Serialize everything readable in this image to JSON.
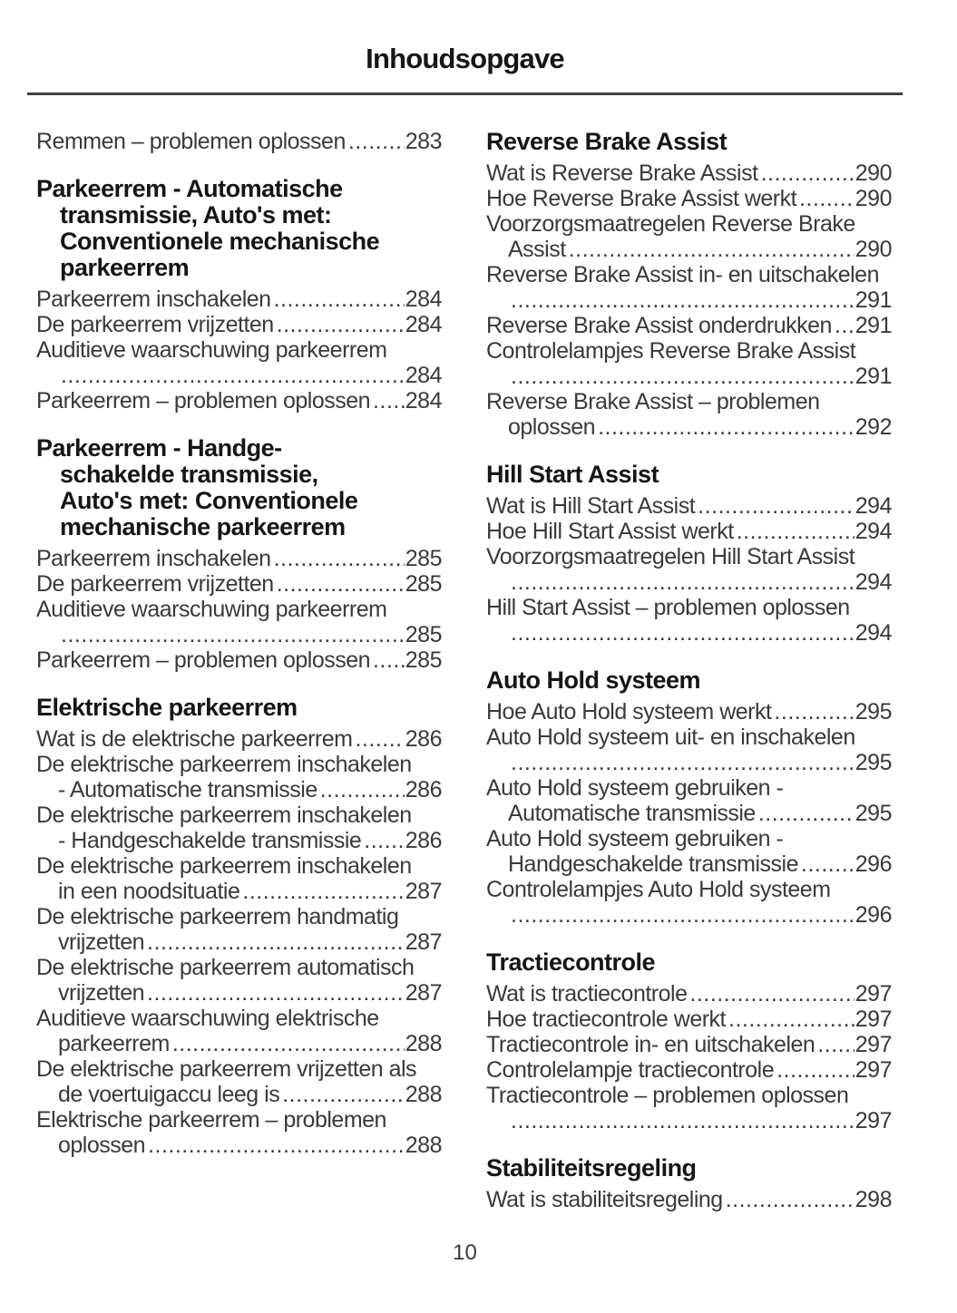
{
  "page": {
    "title": "Inhoudsopgave",
    "footer_page_number": "10"
  },
  "colors": {
    "background": "#ffffff",
    "heading_text": "#161616",
    "body_text": "#3a3a3a",
    "rule": "#414141"
  },
  "toc": {
    "leader_char": ".",
    "left_column": [
      {
        "heading_lines": [],
        "entries": [
          {
            "lines": [
              "Remmen – problemen oplossen"
            ],
            "page": "283"
          }
        ]
      },
      {
        "heading_lines": [
          "Parkeerrem - Automatische",
          "transmissie, Auto's met:",
          "Conventionele mechanische",
          "parkeerrem"
        ],
        "entries": [
          {
            "lines": [
              "Parkeerrem inschakelen"
            ],
            "page": "284"
          },
          {
            "lines": [
              "De parkeerrem vrijzetten"
            ],
            "page": "284"
          },
          {
            "lines": [
              "Auditieve waarschuwing parkeerrem",
              ""
            ],
            "page": "284"
          },
          {
            "lines": [
              "Parkeerrem – problemen oplossen"
            ],
            "page": "284"
          }
        ]
      },
      {
        "heading_lines": [
          "Parkeerrem - Handge-",
          "schakelde transmissie,",
          "Auto's met: Conventionele",
          "mechanische parkeerrem"
        ],
        "entries": [
          {
            "lines": [
              "Parkeerrem inschakelen"
            ],
            "page": "285"
          },
          {
            "lines": [
              "De parkeerrem vrijzetten"
            ],
            "page": "285"
          },
          {
            "lines": [
              "Auditieve waarschuwing parkeerrem",
              ""
            ],
            "page": "285"
          },
          {
            "lines": [
              "Parkeerrem – problemen oplossen"
            ],
            "page": "285"
          }
        ]
      },
      {
        "heading_lines": [
          "Elektrische parkeerrem"
        ],
        "entries": [
          {
            "lines": [
              "Wat is de elektrische parkeerrem"
            ],
            "page": "286"
          },
          {
            "lines": [
              "De elektrische parkeerrem inschakelen",
              "- Automatische transmissie"
            ],
            "page": "286"
          },
          {
            "lines": [
              "De elektrische parkeerrem inschakelen",
              "- Handgeschakelde transmissie"
            ],
            "page": "286"
          },
          {
            "lines": [
              "De elektrische parkeerrem inschakelen",
              "in een noodsituatie"
            ],
            "page": "287"
          },
          {
            "lines": [
              "De elektrische parkeerrem handmatig",
              "vrijzetten"
            ],
            "page": "287"
          },
          {
            "lines": [
              "De elektrische parkeerrem automatisch",
              "vrijzetten"
            ],
            "page": "287"
          },
          {
            "lines": [
              "Auditieve waarschuwing elektrische",
              "parkeerrem"
            ],
            "page": "288"
          },
          {
            "lines": [
              "De elektrische parkeerrem vrijzetten als",
              "de voertuigaccu leeg is"
            ],
            "page": "288"
          },
          {
            "lines": [
              "Elektrische parkeerrem – problemen",
              "oplossen"
            ],
            "page": "288"
          }
        ]
      }
    ],
    "right_column": [
      {
        "heading_lines": [
          "Reverse Brake Assist"
        ],
        "entries": [
          {
            "lines": [
              "Wat is Reverse Brake Assist"
            ],
            "page": "290"
          },
          {
            "lines": [
              "Hoe Reverse Brake Assist werkt"
            ],
            "page": "290"
          },
          {
            "lines": [
              "Voorzorgsmaatregelen Reverse Brake",
              "Assist"
            ],
            "page": "290"
          },
          {
            "lines": [
              "Reverse Brake Assist in- en uitschakelen",
              ""
            ],
            "page": "291"
          },
          {
            "lines": [
              "Reverse Brake Assist onderdrukken"
            ],
            "page": "291"
          },
          {
            "lines": [
              "Controlelampjes Reverse Brake Assist",
              ""
            ],
            "page": "291"
          },
          {
            "lines": [
              "Reverse Brake Assist – problemen",
              "oplossen"
            ],
            "page": "292"
          }
        ]
      },
      {
        "heading_lines": [
          "Hill Start Assist"
        ],
        "entries": [
          {
            "lines": [
              "Wat is Hill Start Assist"
            ],
            "page": "294"
          },
          {
            "lines": [
              "Hoe Hill Start Assist werkt"
            ],
            "page": "294"
          },
          {
            "lines": [
              "Voorzorgsmaatregelen Hill Start Assist",
              ""
            ],
            "page": "294"
          },
          {
            "lines": [
              "Hill Start Assist – problemen oplossen",
              ""
            ],
            "page": "294"
          }
        ]
      },
      {
        "heading_lines": [
          "Auto Hold systeem"
        ],
        "entries": [
          {
            "lines": [
              "Hoe Auto Hold systeem werkt"
            ],
            "page": "295"
          },
          {
            "lines": [
              "Auto Hold systeem uit- en inschakelen",
              ""
            ],
            "page": "295"
          },
          {
            "lines": [
              "Auto Hold systeem gebruiken -",
              "Automatische transmissie"
            ],
            "page": "295"
          },
          {
            "lines": [
              "Auto Hold systeem gebruiken -",
              "Handgeschakelde transmissie"
            ],
            "page": "296"
          },
          {
            "lines": [
              "Controlelampjes Auto Hold systeem",
              ""
            ],
            "page": "296"
          }
        ]
      },
      {
        "heading_lines": [
          "Tractiecontrole"
        ],
        "entries": [
          {
            "lines": [
              "Wat is tractiecontrole"
            ],
            "page": "297"
          },
          {
            "lines": [
              "Hoe tractiecontrole werkt"
            ],
            "page": "297"
          },
          {
            "lines": [
              "Tractiecontrole in- en uitschakelen"
            ],
            "page": "297"
          },
          {
            "lines": [
              "Controlelampje tractiecontrole"
            ],
            "page": "297"
          },
          {
            "lines": [
              "Tractiecontrole – problemen oplossen",
              ""
            ],
            "page": "297"
          }
        ]
      },
      {
        "heading_lines": [
          "Stabiliteitsregeling"
        ],
        "entries": [
          {
            "lines": [
              "Wat is stabiliteitsregeling"
            ],
            "page": "298"
          }
        ]
      }
    ]
  }
}
